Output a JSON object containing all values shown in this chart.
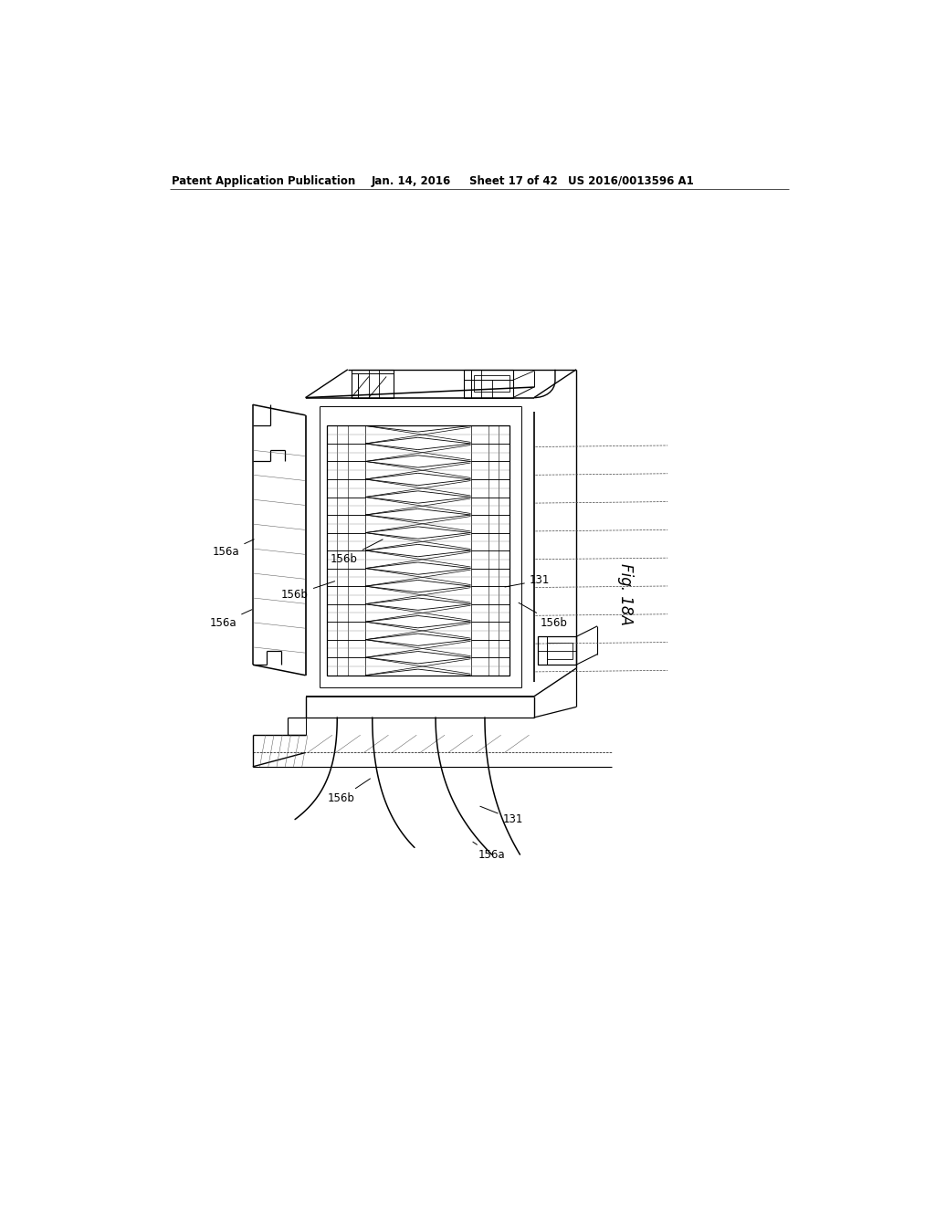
{
  "background_color": "#ffffff",
  "header_text": "Patent Application Publication",
  "header_date": "Jan. 14, 2016",
  "header_sheet": "Sheet 17 of 42",
  "header_patent": "US 2016/0013596 A1",
  "figure_label": "Fig. 18A",
  "lc": "#000000",
  "lw": 0.8
}
